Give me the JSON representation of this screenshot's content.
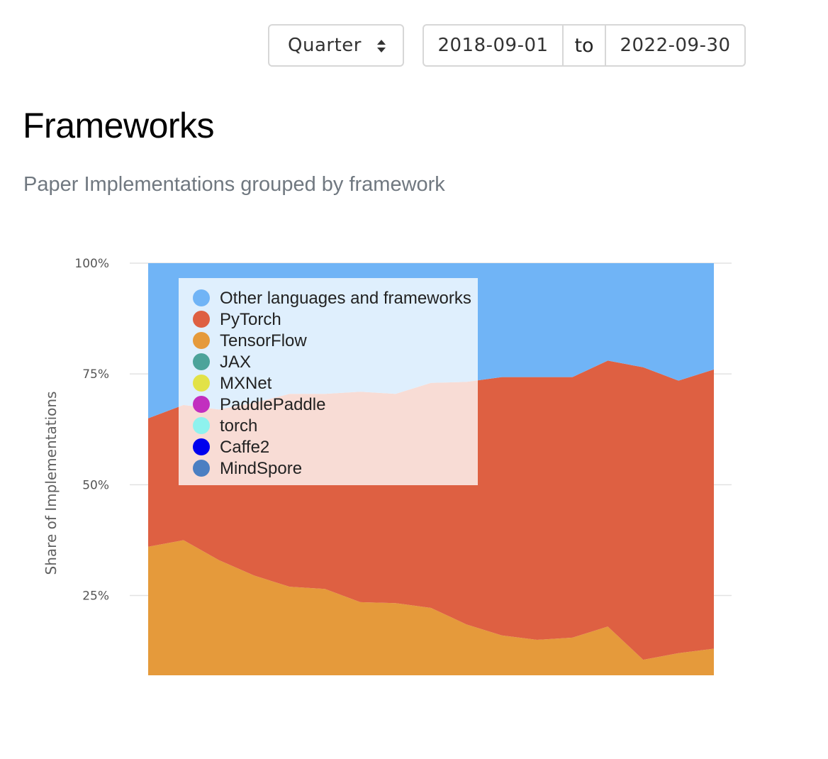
{
  "controls": {
    "period_label": "Quarter",
    "date_start": "2018-09-01",
    "date_sep": "to",
    "date_end": "2022-09-30"
  },
  "header": {
    "title": "Frameworks",
    "subtitle": "Paper Implementations grouped by framework"
  },
  "chart_data": {
    "type": "area",
    "stacked": true,
    "normalized": true,
    "ylabel": "Share of Implementations",
    "yticks": [
      "25%",
      "50%",
      "75%",
      "100%"
    ],
    "ylim": [
      7,
      100
    ],
    "grid": true,
    "legend_position": "top-left",
    "x": [
      1,
      2,
      3,
      4,
      5,
      6,
      7,
      8,
      9,
      10,
      11,
      12,
      13,
      14,
      15,
      16,
      17
    ],
    "series": [
      {
        "name": "MindSpore",
        "color": "#4b7fc2",
        "values": [
          0,
          0,
          0,
          0,
          0,
          0,
          0,
          0,
          0,
          0,
          0,
          0,
          0,
          0,
          0,
          0,
          0
        ]
      },
      {
        "name": "Caffe2",
        "color": "#0000ee",
        "values": [
          0,
          0,
          0,
          0,
          0,
          0,
          0,
          0,
          0,
          0,
          0,
          0,
          0,
          0,
          0,
          0,
          0
        ]
      },
      {
        "name": "torch",
        "color": "#8ef2ee",
        "values": [
          0,
          0,
          0,
          0,
          0,
          0,
          0,
          0,
          0,
          0,
          0,
          0,
          0,
          0,
          0,
          0,
          0
        ]
      },
      {
        "name": "PaddlePaddle",
        "color": "#c22fbf",
        "values": [
          0,
          0,
          0,
          0,
          0,
          0,
          0,
          0,
          0,
          0,
          0,
          0,
          0,
          0,
          0,
          0,
          0
        ]
      },
      {
        "name": "MXNet",
        "color": "#e2e248",
        "values": [
          0,
          0,
          0,
          0,
          0,
          0,
          0,
          0,
          0,
          0,
          0,
          0,
          0,
          0,
          0,
          0,
          0
        ]
      },
      {
        "name": "JAX",
        "color": "#4ca39a",
        "values": [
          0,
          0,
          0,
          0,
          0,
          0,
          0,
          0,
          0,
          0,
          0,
          0,
          0,
          0,
          0,
          0,
          0
        ]
      },
      {
        "name": "TensorFlow",
        "color": "#e59a3b",
        "values": [
          36,
          37.5,
          33,
          29.5,
          27,
          26.5,
          23.5,
          23.3,
          22.2,
          18.5,
          16,
          15,
          15.5,
          18,
          10.5,
          12,
          13
        ]
      },
      {
        "name": "PyTorch",
        "color": "#de6042",
        "values": [
          29,
          30.5,
          34,
          39,
          43.5,
          44,
          47.5,
          47.2,
          50.8,
          54.7,
          58.3,
          59.3,
          58.8,
          60,
          66,
          61.5,
          63
        ]
      },
      {
        "name": "Other languages and frameworks",
        "color": "#70b4f6",
        "values": [
          35,
          32,
          33,
          31.5,
          29.5,
          29.5,
          29,
          29.5,
          27,
          26.8,
          25.7,
          25.7,
          25.7,
          22,
          23.5,
          26.5,
          24
        ]
      }
    ]
  }
}
